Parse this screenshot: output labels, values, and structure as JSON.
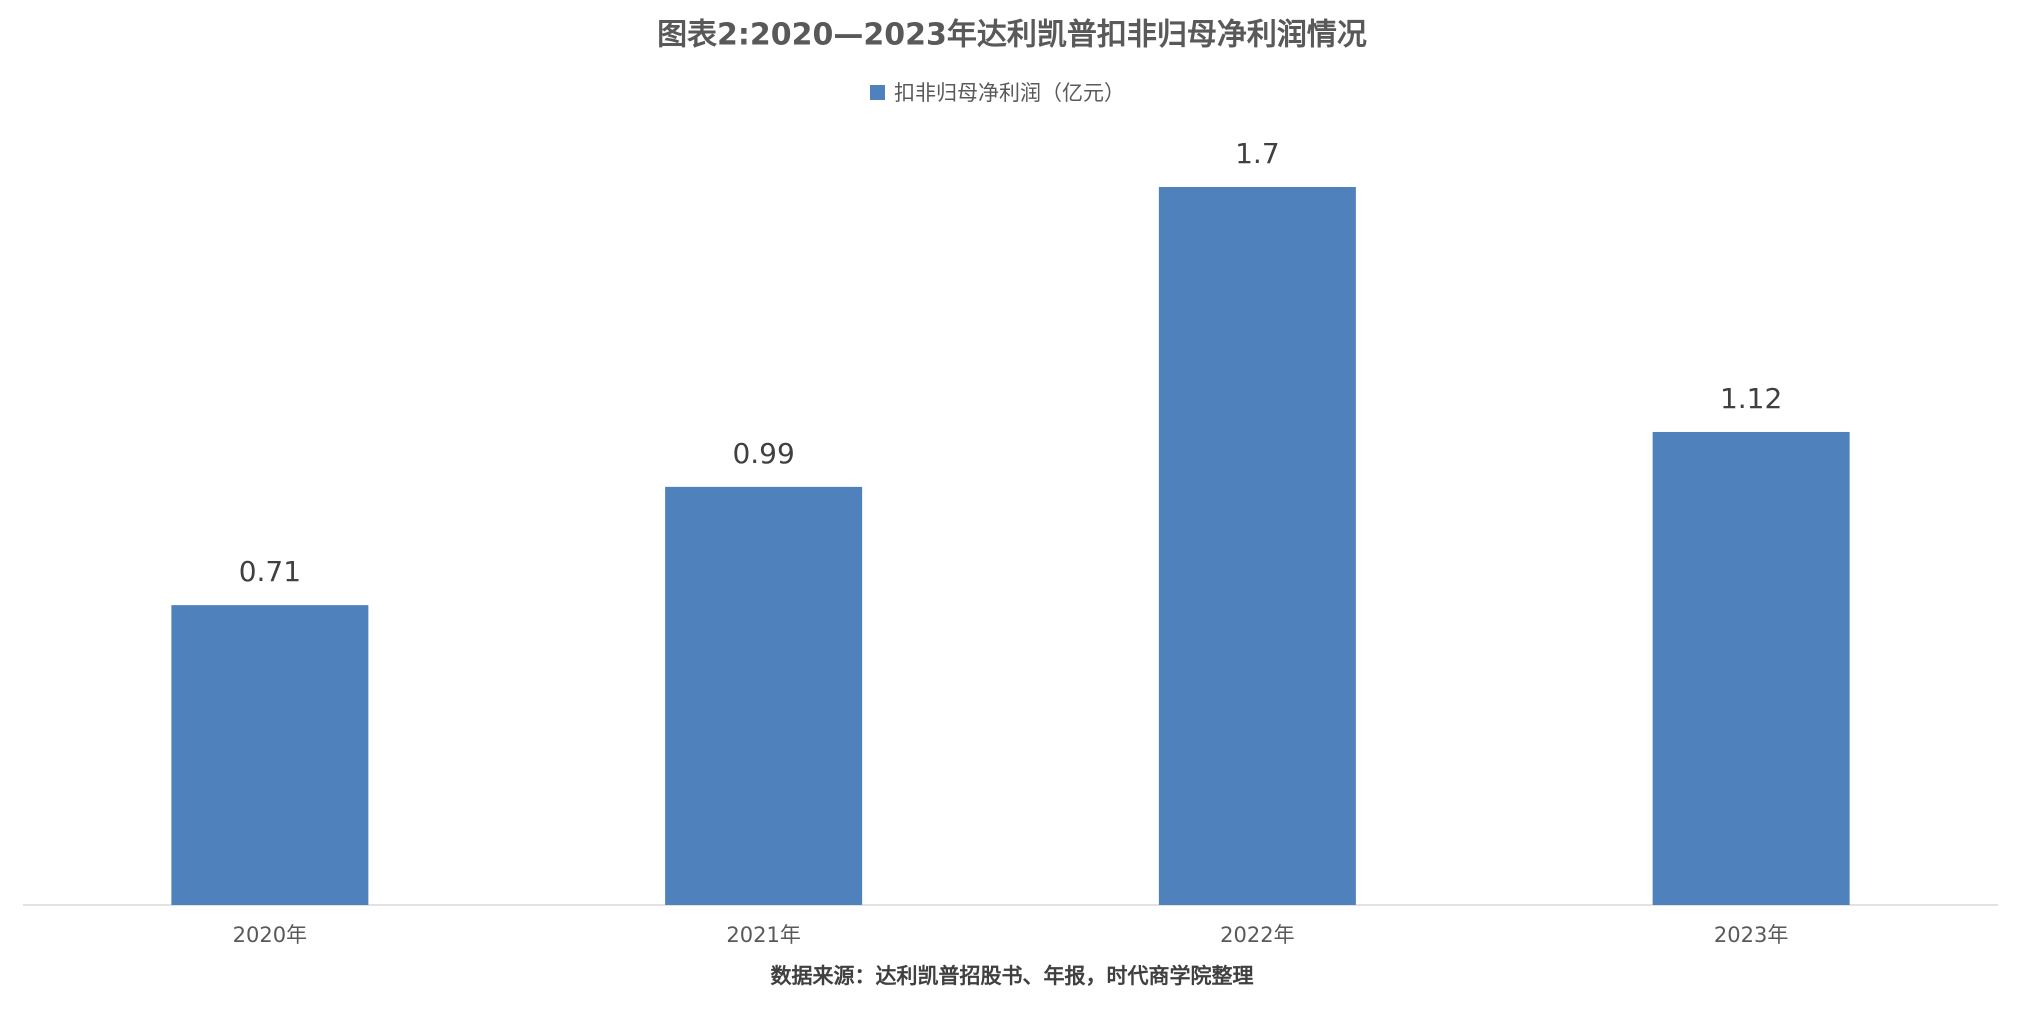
{
  "chart_data": {
    "type": "bar",
    "title": "图表2:2020—2023年达利凯普扣非归母净利润情况",
    "categories": [
      "2020年",
      "2021年",
      "2022年",
      "2023年"
    ],
    "series": [
      {
        "name": "扣非归母净利润（亿元）",
        "color": "#4f81bd",
        "values": [
          0.71,
          0.99,
          1.7,
          1.12
        ]
      }
    ],
    "source": "数据来源：达利凯普招股书、年报，时代商学院整理"
  }
}
